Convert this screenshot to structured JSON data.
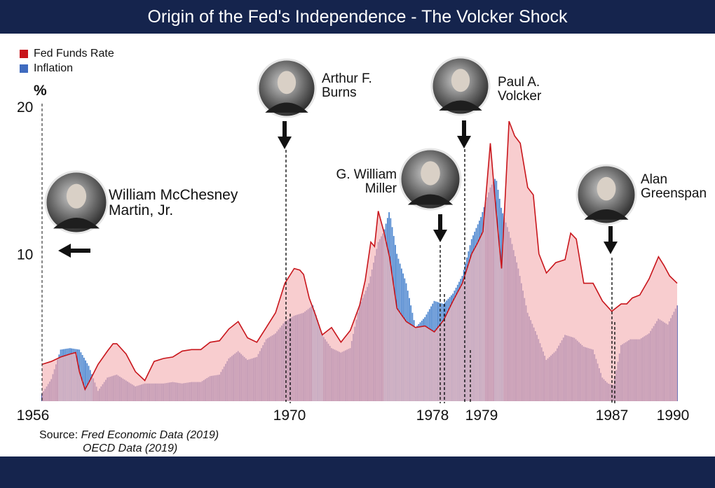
{
  "header": {
    "title": "Origin of the Fed's Independence - The Volcker Shock"
  },
  "colors": {
    "header_bg": "#15244d",
    "fed_line": "#c8151b",
    "fed_fill": "#f7c9ca",
    "inflation": "#3f6bbf"
  },
  "chart_data": {
    "type": "area+bar",
    "title": "Origin of the Fed's Independence - The Volcker Shock",
    "ylabel": "%",
    "ylim": [
      0,
      20
    ],
    "xlim": [
      1956,
      1990
    ],
    "y_ticks": [
      {
        "value": 20,
        "label": "20"
      },
      {
        "value": 10,
        "label": "10"
      }
    ],
    "x_ticks": [
      {
        "value": 1956,
        "label": "1956"
      },
      {
        "value": 1970,
        "label": "1970"
      },
      {
        "value": 1978,
        "label": "1978"
      },
      {
        "value": 1979,
        "label": "1979"
      },
      {
        "value": 1987,
        "label": "1987"
      },
      {
        "value": 1990,
        "label": "1990"
      }
    ],
    "legend": [
      {
        "name": "Fed Funds Rate",
        "color": "#c8151b"
      },
      {
        "name": "Inflation",
        "color": "#3f6bbf"
      }
    ],
    "series": [
      {
        "name": "Fed Funds Rate",
        "x": [
          1956,
          1956.5,
          1957,
          1957.5,
          1957.8,
          1958,
          1958.3,
          1958.6,
          1959,
          1959.5,
          1959.8,
          1960,
          1960.5,
          1961,
          1961.5,
          1962,
          1962.5,
          1963,
          1963.5,
          1964,
          1964.5,
          1965,
          1965.5,
          1966,
          1966.5,
          1967,
          1967.5,
          1968,
          1968.5,
          1969,
          1969.5,
          1969.8,
          1970,
          1970.3,
          1970.6,
          1971,
          1971.5,
          1972,
          1972.5,
          1973,
          1973.3,
          1973.6,
          1973.8,
          1974,
          1974.3,
          1974.6,
          1975,
          1975.5,
          1976,
          1976.5,
          1977,
          1977.5,
          1978,
          1978.5,
          1979,
          1979.3,
          1979.6,
          1980,
          1980.3,
          1980.6,
          1981,
          1981.3,
          1981.6,
          1982,
          1982.3,
          1982.6,
          1983,
          1983.5,
          1984,
          1984.3,
          1984.6,
          1985,
          1985.5,
          1986,
          1986.5,
          1987,
          1987.3,
          1987.6,
          1988,
          1988.5,
          1989,
          1989.3,
          1989.6,
          1990
        ],
        "values": [
          2.5,
          2.7,
          3.0,
          3.2,
          3.3,
          2.0,
          0.8,
          1.5,
          2.5,
          3.4,
          3.9,
          3.9,
          3.2,
          2.0,
          1.4,
          2.7,
          2.9,
          3.0,
          3.4,
          3.5,
          3.5,
          4.0,
          4.1,
          4.9,
          5.4,
          4.3,
          4.0,
          5.0,
          6.0,
          8.0,
          9.0,
          8.9,
          8.6,
          7.0,
          6.0,
          4.5,
          5.0,
          4.0,
          4.8,
          6.5,
          8.2,
          10.8,
          10.5,
          12.9,
          11.5,
          9.8,
          6.3,
          5.4,
          5.0,
          5.1,
          4.7,
          5.5,
          6.8,
          8.0,
          10.0,
          10.7,
          11.5,
          17.5,
          13.0,
          9.0,
          19.0,
          18.0,
          17.5,
          14.5,
          14.0,
          10.0,
          8.7,
          9.4,
          9.6,
          11.4,
          11.0,
          8.0,
          8.0,
          6.8,
          6.1,
          6.6,
          6.6,
          7.0,
          7.2,
          8.3,
          9.8,
          9.2,
          8.5,
          8.0
        ]
      },
      {
        "name": "Inflation",
        "x": [
          1956,
          1956.5,
          1957,
          1957.5,
          1958,
          1958.5,
          1959,
          1959.5,
          1960,
          1960.5,
          1961,
          1961.5,
          1962,
          1962.5,
          1963,
          1963.5,
          1964,
          1964.5,
          1965,
          1965.5,
          1966,
          1966.5,
          1967,
          1967.5,
          1968,
          1968.5,
          1969,
          1969.5,
          1970,
          1970.5,
          1971,
          1971.5,
          1972,
          1972.5,
          1973,
          1973.5,
          1974,
          1974.3,
          1974.6,
          1975,
          1975.5,
          1976,
          1976.5,
          1977,
          1977.5,
          1978,
          1978.5,
          1979,
          1979.5,
          1980,
          1980.3,
          1980.6,
          1981,
          1981.5,
          1982,
          1982.5,
          1983,
          1983.5,
          1984,
          1984.5,
          1985,
          1985.5,
          1986,
          1986.3,
          1986.6,
          1987,
          1987.5,
          1988,
          1988.5,
          1989,
          1989.5,
          1990
        ],
        "values": [
          0.5,
          1.5,
          3.5,
          3.6,
          3.5,
          2.4,
          0.7,
          1.6,
          1.8,
          1.4,
          1.0,
          1.2,
          1.2,
          1.2,
          1.3,
          1.2,
          1.3,
          1.3,
          1.7,
          1.8,
          2.9,
          3.4,
          2.8,
          3.0,
          4.2,
          4.6,
          5.4,
          5.8,
          6.0,
          6.5,
          4.5,
          3.6,
          3.3,
          3.6,
          6.5,
          8.0,
          10.8,
          11.5,
          12.9,
          10.0,
          8.0,
          5.0,
          5.7,
          6.8,
          6.6,
          7.3,
          8.5,
          11.0,
          12.5,
          14.5,
          15.2,
          13.0,
          11.5,
          9.0,
          6.0,
          4.5,
          2.8,
          3.4,
          4.5,
          4.3,
          3.7,
          3.5,
          1.6,
          1.2,
          1.1,
          3.8,
          4.2,
          4.2,
          4.6,
          5.6,
          5.2,
          6.5
        ]
      }
    ],
    "annotations": [
      {
        "id": "martin",
        "label_lines": [
          "William McChesney",
          "Martin, Jr."
        ],
        "x": 1956
      },
      {
        "id": "burns",
        "label_lines": [
          "Arthur F.",
          "Burns"
        ],
        "x": 1970
      },
      {
        "id": "miller",
        "label_lines": [
          "G. William",
          "Miller"
        ],
        "x": 1978
      },
      {
        "id": "volcker",
        "label_lines": [
          "Paul A.",
          "Volcker"
        ],
        "x": 1979
      },
      {
        "id": "greenspan",
        "label_lines": [
          "Alan",
          "Greenspan"
        ],
        "x": 1987
      }
    ]
  },
  "source": {
    "prefix": "Source: ",
    "line1": "Fred Economic Data (2019)",
    "line2": "OECD Data (2019)"
  }
}
